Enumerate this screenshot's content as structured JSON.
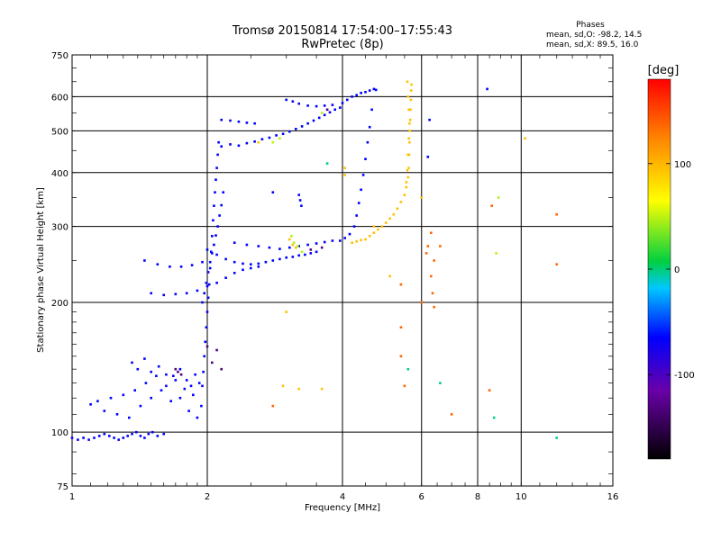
{
  "chart_data": {
    "type": "scatter",
    "title": "Tromsø 20150814 17:54:00–17:55:43",
    "subtitle": "RwPretec (8p)",
    "xlabel": "Frequency [MHz]",
    "ylabel": "Stationary phase Virtual Height [km]",
    "x_scale": "log",
    "y_scale": "log",
    "xlim": [
      1,
      16
    ],
    "ylim": [
      75,
      750
    ],
    "x_ticks": [
      1,
      2,
      4,
      6,
      8,
      10,
      16
    ],
    "x_tick_labels": [
      "1",
      "2",
      "4",
      "6",
      "8",
      "10",
      "16"
    ],
    "y_ticks": [
      75,
      100,
      200,
      300,
      400,
      500,
      600,
      750
    ],
    "y_tick_labels": [
      "75",
      "100",
      "200",
      "300",
      "400",
      "500",
      "600",
      "750"
    ],
    "grid": true,
    "phase_stats": {
      "heading": "Phases",
      "line_o": "mean, sd,O: -98.2, 14.5",
      "line_x": "mean, sd,X:  89.5, 16.0"
    },
    "colorbar": {
      "label": "[deg]",
      "range": [
        -180,
        180
      ],
      "ticks": [
        100,
        0,
        -100
      ],
      "tick_labels": [
        "100",
        "0",
        "-100"
      ]
    },
    "series": [
      {
        "phase": -100,
        "points": [
          [
            1.0,
            97
          ],
          [
            1.03,
            96
          ],
          [
            1.06,
            97
          ],
          [
            1.09,
            96
          ],
          [
            1.12,
            97
          ],
          [
            1.15,
            98
          ],
          [
            1.18,
            99
          ],
          [
            1.21,
            98
          ],
          [
            1.24,
            97
          ],
          [
            1.27,
            96
          ],
          [
            1.3,
            97
          ],
          [
            1.33,
            98
          ],
          [
            1.36,
            99
          ],
          [
            1.39,
            100
          ],
          [
            1.42,
            98
          ],
          [
            1.45,
            97
          ],
          [
            1.48,
            99
          ],
          [
            1.51,
            100
          ],
          [
            1.55,
            98
          ],
          [
            1.6,
            99
          ],
          [
            1.1,
            116
          ],
          [
            1.14,
            118
          ],
          [
            1.18,
            112
          ],
          [
            1.22,
            120
          ],
          [
            1.26,
            110
          ],
          [
            1.3,
            122
          ],
          [
            1.34,
            108
          ],
          [
            1.38,
            125
          ],
          [
            1.42,
            115
          ],
          [
            1.46,
            130
          ],
          [
            1.5,
            120
          ],
          [
            1.54,
            135
          ],
          [
            1.58,
            125
          ],
          [
            1.62,
            128
          ],
          [
            1.66,
            118
          ],
          [
            1.7,
            132
          ],
          [
            1.74,
            120
          ],
          [
            1.78,
            126
          ],
          [
            1.82,
            112
          ],
          [
            1.86,
            122
          ],
          [
            1.9,
            108
          ],
          [
            1.94,
            115
          ],
          [
            1.36,
            145
          ],
          [
            1.4,
            140
          ],
          [
            1.45,
            148
          ],
          [
            1.5,
            138
          ],
          [
            1.56,
            142
          ],
          [
            1.62,
            136
          ],
          [
            1.68,
            135
          ],
          [
            1.74,
            140
          ],
          [
            1.8,
            132
          ],
          [
            1.84,
            128
          ],
          [
            1.88,
            136
          ],
          [
            1.92,
            130
          ],
          [
            1.95,
            128
          ],
          [
            1.96,
            138
          ],
          [
            1.97,
            150
          ],
          [
            1.98,
            162
          ],
          [
            1.99,
            175
          ],
          [
            2.0,
            190
          ],
          [
            2.01,
            205
          ],
          [
            2.02,
            220
          ],
          [
            2.03,
            240
          ],
          [
            2.04,
            262
          ],
          [
            2.05,
            285
          ],
          [
            2.06,
            310
          ],
          [
            2.07,
            335
          ],
          [
            2.08,
            360
          ],
          [
            2.09,
            385
          ],
          [
            2.1,
            410
          ],
          [
            2.11,
            440
          ],
          [
            2.12,
            470
          ],
          [
            1.95,
            200
          ],
          [
            1.97,
            210
          ],
          [
            1.99,
            222
          ],
          [
            2.01,
            235
          ],
          [
            2.03,
            248
          ],
          [
            2.05,
            260
          ],
          [
            2.07,
            272
          ],
          [
            2.09,
            286
          ],
          [
            2.11,
            300
          ],
          [
            2.13,
            318
          ],
          [
            2.15,
            336
          ],
          [
            2.17,
            360
          ],
          [
            1.5,
            210
          ],
          [
            1.6,
            208
          ],
          [
            1.7,
            209
          ],
          [
            1.8,
            210
          ],
          [
            1.9,
            213
          ],
          [
            2.0,
            218
          ],
          [
            2.1,
            222
          ],
          [
            2.2,
            228
          ],
          [
            2.3,
            234
          ],
          [
            2.4,
            238
          ],
          [
            2.5,
            240
          ],
          [
            2.6,
            242
          ],
          [
            1.45,
            250
          ],
          [
            1.55,
            245
          ],
          [
            1.65,
            242
          ],
          [
            1.75,
            242
          ],
          [
            1.85,
            244
          ],
          [
            1.95,
            248
          ],
          [
            2.0,
            265
          ],
          [
            2.1,
            258
          ],
          [
            2.2,
            252
          ],
          [
            2.3,
            248
          ],
          [
            2.4,
            246
          ],
          [
            2.5,
            245
          ],
          [
            2.6,
            246
          ],
          [
            2.7,
            248
          ],
          [
            2.8,
            250
          ],
          [
            2.9,
            252
          ],
          [
            3.0,
            254
          ],
          [
            3.1,
            255
          ],
          [
            3.2,
            257
          ],
          [
            3.3,
            258
          ],
          [
            3.4,
            260
          ],
          [
            3.5,
            262
          ],
          [
            2.3,
            275
          ],
          [
            2.45,
            272
          ],
          [
            2.6,
            270
          ],
          [
            2.75,
            268
          ],
          [
            2.9,
            266
          ],
          [
            3.05,
            268
          ],
          [
            3.2,
            270
          ],
          [
            3.35,
            272
          ],
          [
            3.5,
            274
          ],
          [
            3.65,
            276
          ],
          [
            3.8,
            278
          ],
          [
            2.15,
            460
          ],
          [
            2.25,
            465
          ],
          [
            2.35,
            462
          ],
          [
            2.45,
            468
          ],
          [
            2.55,
            472
          ],
          [
            2.65,
            478
          ],
          [
            2.75,
            482
          ],
          [
            2.85,
            488
          ],
          [
            2.95,
            492
          ],
          [
            3.05,
            498
          ],
          [
            3.15,
            505
          ],
          [
            3.25,
            512
          ],
          [
            3.35,
            520
          ],
          [
            3.45,
            528
          ],
          [
            3.55,
            536
          ],
          [
            3.65,
            544
          ],
          [
            3.75,
            552
          ],
          [
            3.85,
            560
          ],
          [
            3.95,
            566
          ],
          [
            2.15,
            530
          ],
          [
            2.25,
            528
          ],
          [
            2.35,
            525
          ],
          [
            2.45,
            522
          ],
          [
            2.55,
            520
          ],
          [
            3.0,
            590
          ],
          [
            3.1,
            585
          ],
          [
            3.2,
            578
          ],
          [
            3.35,
            572
          ],
          [
            3.5,
            570
          ],
          [
            3.65,
            572
          ],
          [
            3.8,
            574
          ],
          [
            4.0,
            580
          ],
          [
            4.1,
            590
          ],
          [
            4.2,
            600
          ],
          [
            4.3,
            605
          ],
          [
            4.4,
            612
          ],
          [
            4.5,
            615
          ],
          [
            4.6,
            620
          ],
          [
            4.7,
            625
          ],
          [
            4.75,
            622
          ],
          [
            4.65,
            560
          ],
          [
            4.6,
            510
          ],
          [
            4.55,
            470
          ],
          [
            4.5,
            430
          ],
          [
            4.45,
            395
          ],
          [
            4.4,
            365
          ],
          [
            4.35,
            340
          ],
          [
            4.3,
            318
          ],
          [
            4.25,
            300
          ],
          [
            4.15,
            288
          ],
          [
            4.05,
            282
          ],
          [
            3.95,
            278
          ],
          [
            3.2,
            355
          ],
          [
            3.22,
            345
          ],
          [
            3.24,
            335
          ],
          [
            2.8,
            360
          ],
          [
            8.4,
            625
          ],
          [
            6.2,
            435
          ],
          [
            6.25,
            530
          ]
        ]
      },
      {
        "phase": -150,
        "points": [
          [
            1.7,
            140
          ],
          [
            1.72,
            138
          ],
          [
            1.75,
            136
          ],
          [
            2.05,
            145
          ],
          [
            2.1,
            155
          ],
          [
            2.15,
            140
          ],
          [
            3.4,
            265
          ],
          [
            3.6,
            268
          ],
          [
            3.7,
            560
          ],
          [
            2.0,
            158
          ]
        ]
      },
      {
        "phase": 100,
        "points": [
          [
            4.5,
            280
          ],
          [
            4.6,
            285
          ],
          [
            4.7,
            290
          ],
          [
            4.8,
            295
          ],
          [
            4.9,
            300
          ],
          [
            5.0,
            306
          ],
          [
            5.1,
            313
          ],
          [
            5.2,
            320
          ],
          [
            5.3,
            330
          ],
          [
            5.4,
            342
          ],
          [
            5.5,
            355
          ],
          [
            5.55,
            370
          ],
          [
            5.6,
            390
          ],
          [
            5.62,
            410
          ],
          [
            5.63,
            440
          ],
          [
            5.64,
            470
          ],
          [
            5.65,
            500
          ],
          [
            5.66,
            530
          ],
          [
            5.67,
            560
          ],
          [
            5.68,
            590
          ],
          [
            5.69,
            620
          ],
          [
            5.7,
            640
          ],
          [
            5.58,
            650
          ],
          [
            5.6,
            600
          ],
          [
            5.62,
            560
          ],
          [
            5.64,
            520
          ],
          [
            5.62,
            480
          ],
          [
            5.6,
            440
          ],
          [
            5.58,
            405
          ],
          [
            5.55,
            380
          ],
          [
            4.2,
            275
          ],
          [
            4.3,
            277
          ],
          [
            4.4,
            279
          ],
          [
            4.05,
            395
          ],
          [
            4.05,
            410
          ],
          [
            3.05,
            280
          ],
          [
            3.1,
            272
          ],
          [
            3.15,
            268
          ],
          [
            2.6,
            470
          ],
          [
            3.6,
            126
          ],
          [
            3.2,
            126
          ],
          [
            2.95,
            128
          ],
          [
            3.0,
            190
          ],
          [
            10.2,
            480
          ],
          [
            5.1,
            230
          ],
          [
            6.0,
            350
          ],
          [
            4.7,
            300
          ]
        ]
      },
      {
        "phase": 50,
        "points": [
          [
            3.08,
            285
          ],
          [
            3.12,
            275
          ],
          [
            3.18,
            270
          ],
          [
            3.25,
            262
          ],
          [
            2.8,
            470
          ],
          [
            2.9,
            480
          ],
          [
            3.6,
            550
          ],
          [
            8.8,
            260
          ],
          [
            8.9,
            350
          ]
        ]
      },
      {
        "phase": 140,
        "points": [
          [
            6.3,
            290
          ],
          [
            6.2,
            270
          ],
          [
            6.15,
            260
          ],
          [
            6.4,
            250
          ],
          [
            6.3,
            230
          ],
          [
            6.35,
            210
          ],
          [
            6.4,
            195
          ],
          [
            5.4,
            220
          ],
          [
            5.4,
            175
          ],
          [
            5.4,
            150
          ],
          [
            5.5,
            128
          ],
          [
            6.6,
            270
          ],
          [
            6.0,
            200
          ],
          [
            12.0,
            320
          ],
          [
            12.0,
            245
          ],
          [
            7.0,
            110
          ],
          [
            8.5,
            125
          ],
          [
            8.6,
            335
          ],
          [
            2.8,
            115
          ]
        ]
      },
      {
        "phase": -10,
        "points": [
          [
            8.7,
            108
          ],
          [
            6.6,
            130
          ],
          [
            12.0,
            97
          ],
          [
            3.7,
            420
          ],
          [
            5.6,
            140
          ]
        ]
      }
    ]
  }
}
